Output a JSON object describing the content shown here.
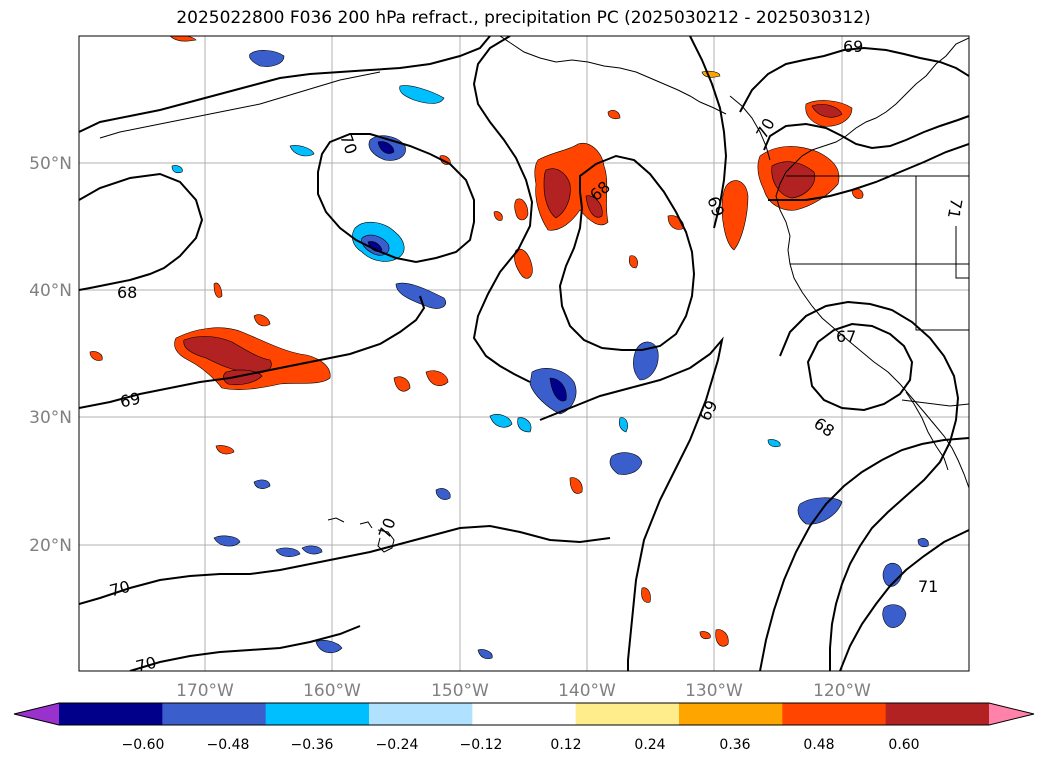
{
  "title": "2025022800 F036 200 hPa refract., precipitation PC (2025030212 - 2025030312)",
  "lat_labels": [
    "50°N",
    "40°N",
    "30°N",
    "20°N"
  ],
  "lon_labels": [
    "170°W",
    "160°W",
    "150°W",
    "140°W",
    "130°W",
    "120°W"
  ],
  "contour_labels": [
    "69",
    "70",
    "68",
    "68",
    "69",
    "69",
    "67",
    "69",
    "68",
    "70",
    "70",
    "70",
    "71",
    "71",
    "70"
  ],
  "colorbar": {
    "ticks": [
      "−0.60",
      "−0.48",
      "−0.36",
      "−0.24",
      "−0.12",
      "0.12",
      "0.24",
      "0.36",
      "0.48",
      "0.60"
    ],
    "colors": [
      "#9932cc",
      "#00008b",
      "#3a5fcd",
      "#00bfff",
      "#b0e2ff",
      "#ffffff",
      "#ffec8b",
      "#ffa500",
      "#ff4500",
      "#b22222",
      "#ff82ab"
    ]
  },
  "colors": {
    "neg_strong": "#00008b",
    "neg_mid": "#3a5fcd",
    "neg_light": "#00bfff",
    "neg_pale": "#b0e2ff",
    "pos_pale": "#ffec8b",
    "pos_light": "#ffa500",
    "pos_mid": "#ff4500",
    "pos_strong": "#b22222"
  }
}
